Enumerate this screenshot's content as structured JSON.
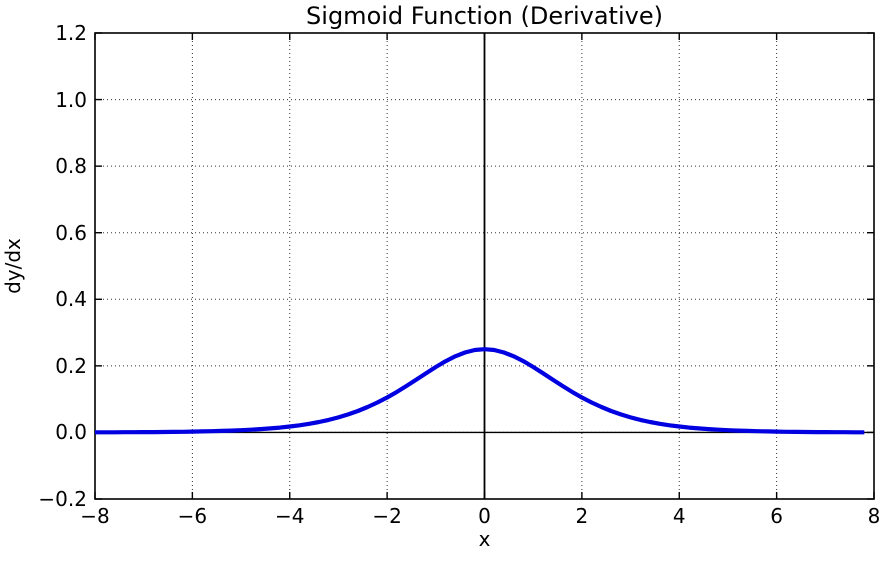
{
  "chart_data": {
    "type": "line",
    "title": "Sigmoid Function (Derivative)",
    "xlabel": "x",
    "ylabel": "dy/dx",
    "xlim": [
      -8,
      8
    ],
    "ylim": [
      -0.2,
      1.2
    ],
    "xticks": [
      -8,
      -6,
      -4,
      -2,
      0,
      2,
      4,
      6,
      8
    ],
    "xtick_labels": [
      "−8",
      "−6",
      "−4",
      "−2",
      "0",
      "2",
      "4",
      "6",
      "8"
    ],
    "yticks": [
      -0.2,
      0.0,
      0.2,
      0.4,
      0.6,
      0.8,
      1.0,
      1.2
    ],
    "ytick_labels": [
      "−0.2",
      "0.0",
      "0.2",
      "0.4",
      "0.6",
      "0.8",
      "1.0",
      "1.2"
    ],
    "grid": true,
    "grid_linestyle": "dotted",
    "legend": "none",
    "axhline_y": 0,
    "axvline_x": 0,
    "colors": {
      "line": "#0000e0",
      "grid": "#333333",
      "axis": "#000000",
      "background": "#ffffff"
    },
    "series": [
      {
        "name": "sigmoid-derivative",
        "x": [
          -8.0,
          -7.8,
          -7.6,
          -7.4,
          -7.2,
          -7.0,
          -6.8,
          -6.6,
          -6.4,
          -6.2,
          -6.0,
          -5.8,
          -5.6,
          -5.4,
          -5.2,
          -5.0,
          -4.8,
          -4.6,
          -4.4,
          -4.2,
          -4.0,
          -3.8,
          -3.6,
          -3.4,
          -3.2,
          -3.0,
          -2.8,
          -2.6,
          -2.4,
          -2.2,
          -2.0,
          -1.8,
          -1.6,
          -1.4,
          -1.2,
          -1.0,
          -0.8,
          -0.6,
          -0.4,
          -0.2,
          0.0,
          0.2,
          0.4,
          0.6,
          0.8,
          1.0,
          1.2,
          1.4,
          1.6,
          1.8,
          2.0,
          2.2,
          2.4,
          2.6,
          2.8,
          3.0,
          3.2,
          3.4,
          3.6,
          3.8,
          4.0,
          4.2,
          4.4,
          4.6,
          4.8,
          5.0,
          5.2,
          5.4,
          5.6,
          5.8,
          6.0,
          6.2,
          6.4,
          6.6,
          6.8,
          7.0,
          7.2,
          7.4,
          7.6,
          7.8
        ],
        "y": [
          0.000335,
          0.000409,
          0.0005,
          0.00061,
          0.000745,
          0.00091,
          0.001111,
          0.001357,
          0.001656,
          0.002021,
          0.002467,
          0.003009,
          0.003673,
          0.004477,
          0.005456,
          0.006648,
          0.008097,
          0.009853,
          0.011981,
          0.014556,
          0.017663,
          0.021403,
          0.025889,
          0.031252,
          0.037632,
          0.045177,
          0.054038,
          0.064358,
          0.076255,
          0.0898,
          0.104994,
          0.121729,
          0.139764,
          0.158685,
          0.177894,
          0.196612,
          0.21391,
          0.228784,
          0.240261,
          0.247517,
          0.25,
          0.247517,
          0.240261,
          0.228784,
          0.21391,
          0.196612,
          0.177894,
          0.158685,
          0.139764,
          0.121729,
          0.104994,
          0.0898,
          0.076255,
          0.064358,
          0.054038,
          0.045177,
          0.037632,
          0.031252,
          0.025889,
          0.021403,
          0.017663,
          0.014556,
          0.011981,
          0.009853,
          0.008097,
          0.006648,
          0.005456,
          0.004477,
          0.003673,
          0.003009,
          0.002467,
          0.002021,
          0.001656,
          0.001357,
          0.001111,
          0.00091,
          0.000745,
          0.00061,
          0.0005,
          0.000409
        ]
      }
    ]
  }
}
